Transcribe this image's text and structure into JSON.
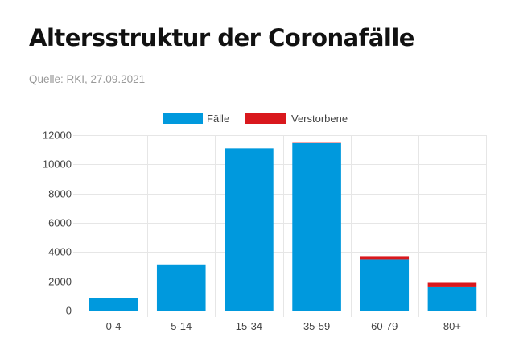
{
  "header": {
    "title": "Altersstruktur der Coronafälle",
    "source": "Quelle: RKI, 27.09.2021"
  },
  "colors": {
    "faelle": "#0099dd",
    "verstorbene": "#d9181d",
    "grid": "#e6e6e6",
    "axis": "#bdbdbd"
  },
  "chart_data": {
    "type": "bar",
    "stacked": true,
    "categories": [
      "0-4",
      "5-14",
      "15-34",
      "35-59",
      "60-79",
      "80+"
    ],
    "series": [
      {
        "name": "Fälle",
        "color": "#0099dd",
        "values": [
          850,
          3150,
          11100,
          11450,
          3500,
          1600
        ]
      },
      {
        "name": "Verstorbene",
        "color": "#d9181d",
        "values": [
          0,
          0,
          0,
          20,
          220,
          300
        ]
      }
    ],
    "ylim": [
      0,
      12000
    ],
    "yticks": [
      "0",
      "2000",
      "4000",
      "6000",
      "8000",
      "10000",
      "12000"
    ],
    "legend": "top",
    "grid": true
  }
}
